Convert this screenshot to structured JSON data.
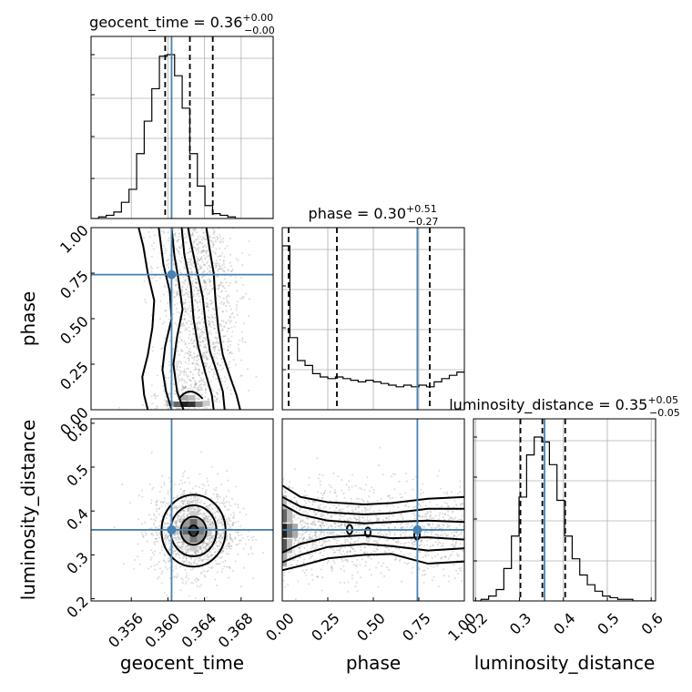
{
  "chart_data": {
    "type": "corner",
    "truth_color": "#4682b4",
    "parameters": [
      {
        "key": "geocent_time",
        "label": "geocent_time",
        "title_value": "0.36",
        "title_plus": "+0.00",
        "title_minus": "−0.00",
        "range": [
          0.3516,
          0.3715
        ],
        "ticks": [
          0.356,
          0.36,
          0.364,
          0.368
        ],
        "tick_labels": [
          "0.356",
          "0.360",
          "0.364",
          "0.368"
        ],
        "truth": 0.3604,
        "quantiles": [
          0.3597,
          0.3624,
          0.3649
        ],
        "hist_edges_start": 0.3516,
        "hist_bin_width": 0.00083,
        "hist_counts": [
          0,
          1,
          2,
          4,
          10,
          18,
          40,
          60,
          80,
          100,
          101,
          88,
          68,
          40,
          20,
          8,
          3,
          2,
          1,
          0,
          0,
          0,
          0,
          0
        ]
      },
      {
        "key": "phase",
        "label": "phase",
        "title_value": "0.30",
        "title_plus": "+0.51",
        "title_minus": "−0.27",
        "range": [
          0.0,
          1.0
        ],
        "ticks": [
          0.0,
          0.25,
          0.5,
          0.75,
          1.0
        ],
        "tick_labels": [
          "0.00",
          "0.25",
          "0.50",
          "0.75",
          "1.00"
        ],
        "truth": 0.742,
        "quantiles": [
          0.035,
          0.3,
          0.81
        ],
        "hist_edges_start": 0.0,
        "hist_bin_width": 0.0417,
        "hist_counts": [
          100,
          44,
          30,
          27,
          22,
          20,
          19,
          20,
          19,
          18,
          17,
          18,
          17,
          16,
          15,
          14,
          15,
          14,
          15,
          14,
          17,
          19,
          21,
          23
        ]
      },
      {
        "key": "luminosity_distance",
        "label": "luminosity_distance",
        "title_value": "0.35",
        "title_plus": "+0.05",
        "title_minus": "−0.05",
        "range": [
          0.195,
          0.61
        ],
        "ticks": [
          0.2,
          0.3,
          0.4,
          0.5,
          0.6
        ],
        "tick_labels": [
          "0.2",
          "0.3",
          "0.4",
          "0.5",
          "0.6"
        ],
        "truth": 0.357,
        "quantiles": [
          0.302,
          0.352,
          0.404
        ],
        "hist_edges_start": 0.195,
        "hist_bin_width": 0.0173,
        "hist_counts": [
          0,
          1,
          3,
          7,
          20,
          40,
          64,
          90,
          101,
          98,
          84,
          62,
          40,
          26,
          16,
          10,
          6,
          3,
          2,
          1,
          1,
          0,
          0,
          0
        ]
      }
    ],
    "contours": {
      "phase_vs_geocent_time": {
        "x": "geocent_time",
        "y": "phase",
        "levels": [
          [
            [
              0.3578,
              0.0
            ],
            [
              0.3574,
              0.08
            ],
            [
              0.3572,
              0.18
            ],
            [
              0.3578,
              0.3
            ],
            [
              0.3583,
              0.45
            ],
            [
              0.3585,
              0.6
            ],
            [
              0.3578,
              0.75
            ],
            [
              0.3573,
              0.9
            ],
            [
              0.3568,
              1.0
            ]
          ],
          [
            [
              0.3604,
              0.0
            ],
            [
              0.3598,
              0.1
            ],
            [
              0.3594,
              0.22
            ],
            [
              0.3597,
              0.35
            ],
            [
              0.3604,
              0.5
            ],
            [
              0.3602,
              0.65
            ],
            [
              0.3595,
              0.8
            ],
            [
              0.3592,
              0.92
            ],
            [
              0.359,
              1.0
            ]
          ],
          [
            [
              0.3617,
              0.0
            ],
            [
              0.361,
              0.1
            ],
            [
              0.3606,
              0.25
            ],
            [
              0.361,
              0.4
            ],
            [
              0.3616,
              0.55
            ],
            [
              0.3612,
              0.7
            ],
            [
              0.3607,
              0.85
            ],
            [
              0.3604,
              1.0
            ]
          ],
          [
            [
              0.3679,
              0.0
            ],
            [
              0.3675,
              0.08
            ],
            [
              0.3668,
              0.18
            ],
            [
              0.366,
              0.3
            ],
            [
              0.3655,
              0.45
            ],
            [
              0.3652,
              0.6
            ],
            [
              0.365,
              0.75
            ],
            [
              0.3645,
              0.9
            ],
            [
              0.3642,
              1.0
            ]
          ],
          [
            [
              0.3662,
              0.0
            ],
            [
              0.366,
              0.1
            ],
            [
              0.3654,
              0.2
            ],
            [
              0.3646,
              0.32
            ],
            [
              0.3641,
              0.48
            ],
            [
              0.3638,
              0.62
            ],
            [
              0.363,
              0.8
            ],
            [
              0.3625,
              0.92
            ],
            [
              0.3622,
              1.0
            ]
          ],
          [
            [
              0.365,
              0.0
            ],
            [
              0.3648,
              0.08
            ],
            [
              0.3641,
              0.2
            ],
            [
              0.3633,
              0.35
            ],
            [
              0.3628,
              0.5
            ],
            [
              0.3625,
              0.68
            ],
            [
              0.3618,
              0.85
            ],
            [
              0.3615,
              1.0
            ]
          ]
        ]
      },
      "luminosity_distance_vs_geocent_time": {
        "x": "geocent_time",
        "y": "luminosity_distance",
        "center": [
          0.3628,
          0.355
        ],
        "ellipses": [
          [
            0.0005,
            0.012
          ],
          [
            0.0014,
            0.032
          ],
          [
            0.0025,
            0.058
          ],
          [
            0.0035,
            0.082
          ]
        ]
      },
      "luminosity_distance_vs_phase": {
        "x": "phase",
        "y": "luminosity_distance",
        "levels": [
          [
            [
              0.0,
              0.265
            ],
            [
              0.1,
              0.275
            ],
            [
              0.25,
              0.292
            ],
            [
              0.45,
              0.3
            ],
            [
              0.6,
              0.302
            ],
            [
              0.8,
              0.28
            ],
            [
              1.0,
              0.285
            ]
          ],
          [
            [
              0.0,
              0.283
            ],
            [
              0.1,
              0.3
            ],
            [
              0.25,
              0.318
            ],
            [
              0.45,
              0.325
            ],
            [
              0.6,
              0.32
            ],
            [
              0.8,
              0.31
            ],
            [
              1.0,
              0.315
            ]
          ],
          [
            [
              0.0,
              0.305
            ],
            [
              0.1,
              0.325
            ],
            [
              0.25,
              0.34
            ],
            [
              0.45,
              0.345
            ],
            [
              0.6,
              0.338
            ],
            [
              0.8,
              0.34
            ],
            [
              1.0,
              0.335
            ]
          ],
          [
            [
              0.0,
              0.415
            ],
            [
              0.1,
              0.392
            ],
            [
              0.25,
              0.378
            ],
            [
              0.45,
              0.372
            ],
            [
              0.6,
              0.375
            ],
            [
              0.8,
              0.378
            ],
            [
              1.0,
              0.375
            ]
          ],
          [
            [
              0.0,
              0.432
            ],
            [
              0.1,
              0.41
            ],
            [
              0.25,
              0.397
            ],
            [
              0.45,
              0.392
            ],
            [
              0.6,
              0.395
            ],
            [
              0.8,
              0.405
            ],
            [
              1.0,
              0.405
            ]
          ],
          [
            [
              0.0,
              0.458
            ],
            [
              0.1,
              0.432
            ],
            [
              0.25,
              0.42
            ],
            [
              0.45,
              0.415
            ],
            [
              0.6,
              0.418
            ],
            [
              0.8,
              0.428
            ],
            [
              1.0,
              0.432
            ]
          ]
        ]
      }
    }
  }
}
